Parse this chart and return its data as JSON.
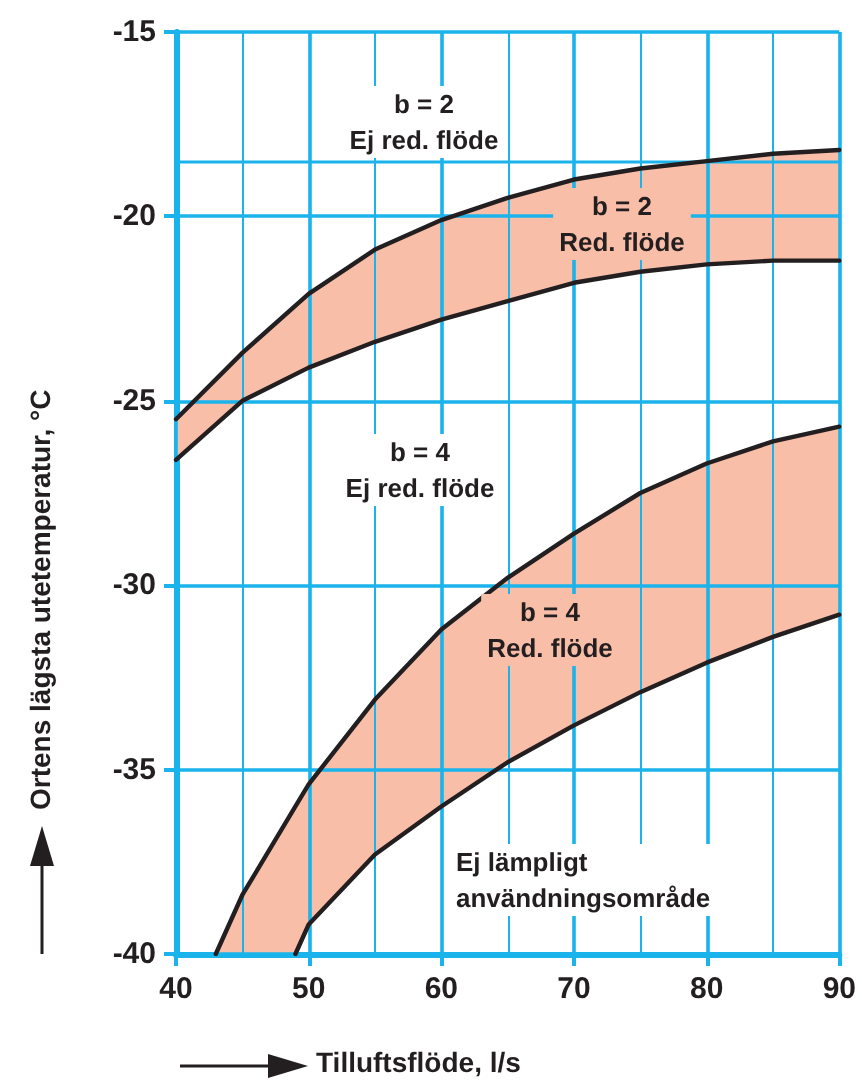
{
  "chart_data": {
    "type": "line",
    "xlabel": "Tilluftsflöde, l/s",
    "ylabel": "Ortens lägsta utetemperatur, °C",
    "xlim": [
      40,
      90
    ],
    "ylim": [
      -40,
      -15
    ],
    "xticks": [
      40,
      {
        "value": 45,
        "label": null
      },
      50,
      {
        "value": 55,
        "label": null
      },
      60,
      {
        "value": 65,
        "label": null
      },
      70,
      {
        "value": 75,
        "label": null
      },
      80,
      {
        "value": 85,
        "label": null
      },
      90
    ],
    "yticks": [
      -40,
      -35,
      -30,
      -25,
      -20,
      -15
    ],
    "grid": true,
    "ref_lines": [
      {
        "axis": "y",
        "value": -18.5,
        "color": "#1ab3eb"
      }
    ],
    "series": [
      {
        "color": "#231f20",
        "x": [
          40,
          45,
          50,
          55,
          60,
          65,
          70,
          75,
          80,
          85,
          90
        ],
        "values": [
          -25.5,
          -23.7,
          -22.1,
          -20.9,
          -20.1,
          -19.5,
          -19.0,
          -18.7,
          -18.5,
          -18.3,
          -18.2
        ],
        "lower": [
          -26.6,
          -25.0,
          -24.1,
          -23.4,
          -22.8,
          -22.3,
          -21.8,
          -21.5,
          -21.3,
          -21.2,
          -21.2
        ],
        "upper": [
          -25.5,
          -23.7,
          -22.1,
          -20.9,
          -20.1,
          -19.5,
          -19.0,
          -18.7,
          -18.5,
          -18.3,
          -18.2
        ]
      },
      {
        "color": "#231f20",
        "x": [
          40,
          45,
          50,
          55,
          60,
          65,
          70,
          75,
          80,
          85,
          90
        ],
        "values": [
          -26.6,
          -25.0,
          -24.1,
          -23.4,
          -22.8,
          -22.3,
          -21.8,
          -21.5,
          -21.3,
          -21.2,
          -21.2
        ]
      },
      {
        "color": "#231f20",
        "x": [
          43,
          45,
          49,
          50,
          55,
          60,
          65,
          70,
          75,
          80,
          85,
          90
        ],
        "values": [
          -40,
          -38.4,
          -36.0,
          -35.4,
          -33.1,
          -31.2,
          -29.8,
          -28.6,
          -27.5,
          -26.7,
          -26.1,
          -25.7
        ],
        "lower": [
          -40,
          -40,
          -40,
          -39.2,
          -37.3,
          -36.0,
          -34.8,
          -33.8,
          -32.9,
          -32.1,
          -31.4,
          -30.8
        ],
        "upper": [
          -40,
          -38.4,
          -36.0,
          -35.4,
          -33.1,
          -31.2,
          -29.8,
          -28.6,
          -27.5,
          -26.7,
          -26.1,
          -25.7
        ]
      },
      {
        "color": "#231f20",
        "x": [
          49,
          50,
          55,
          60,
          65,
          70,
          75,
          80,
          85,
          90
        ],
        "values": [
          -40,
          -39.2,
          -37.3,
          -36.0,
          -34.8,
          -33.8,
          -32.9,
          -32.1,
          -31.4,
          -30.8
        ]
      }
    ],
    "annotations": [
      "b = 2\nEj red. flöde",
      "b = 2\nRed. flöde",
      "b = 4\nEj red. flöde",
      "b = 4\nRed. flöde",
      "Ej lämpligt\nanvändningsområde"
    ]
  }
}
